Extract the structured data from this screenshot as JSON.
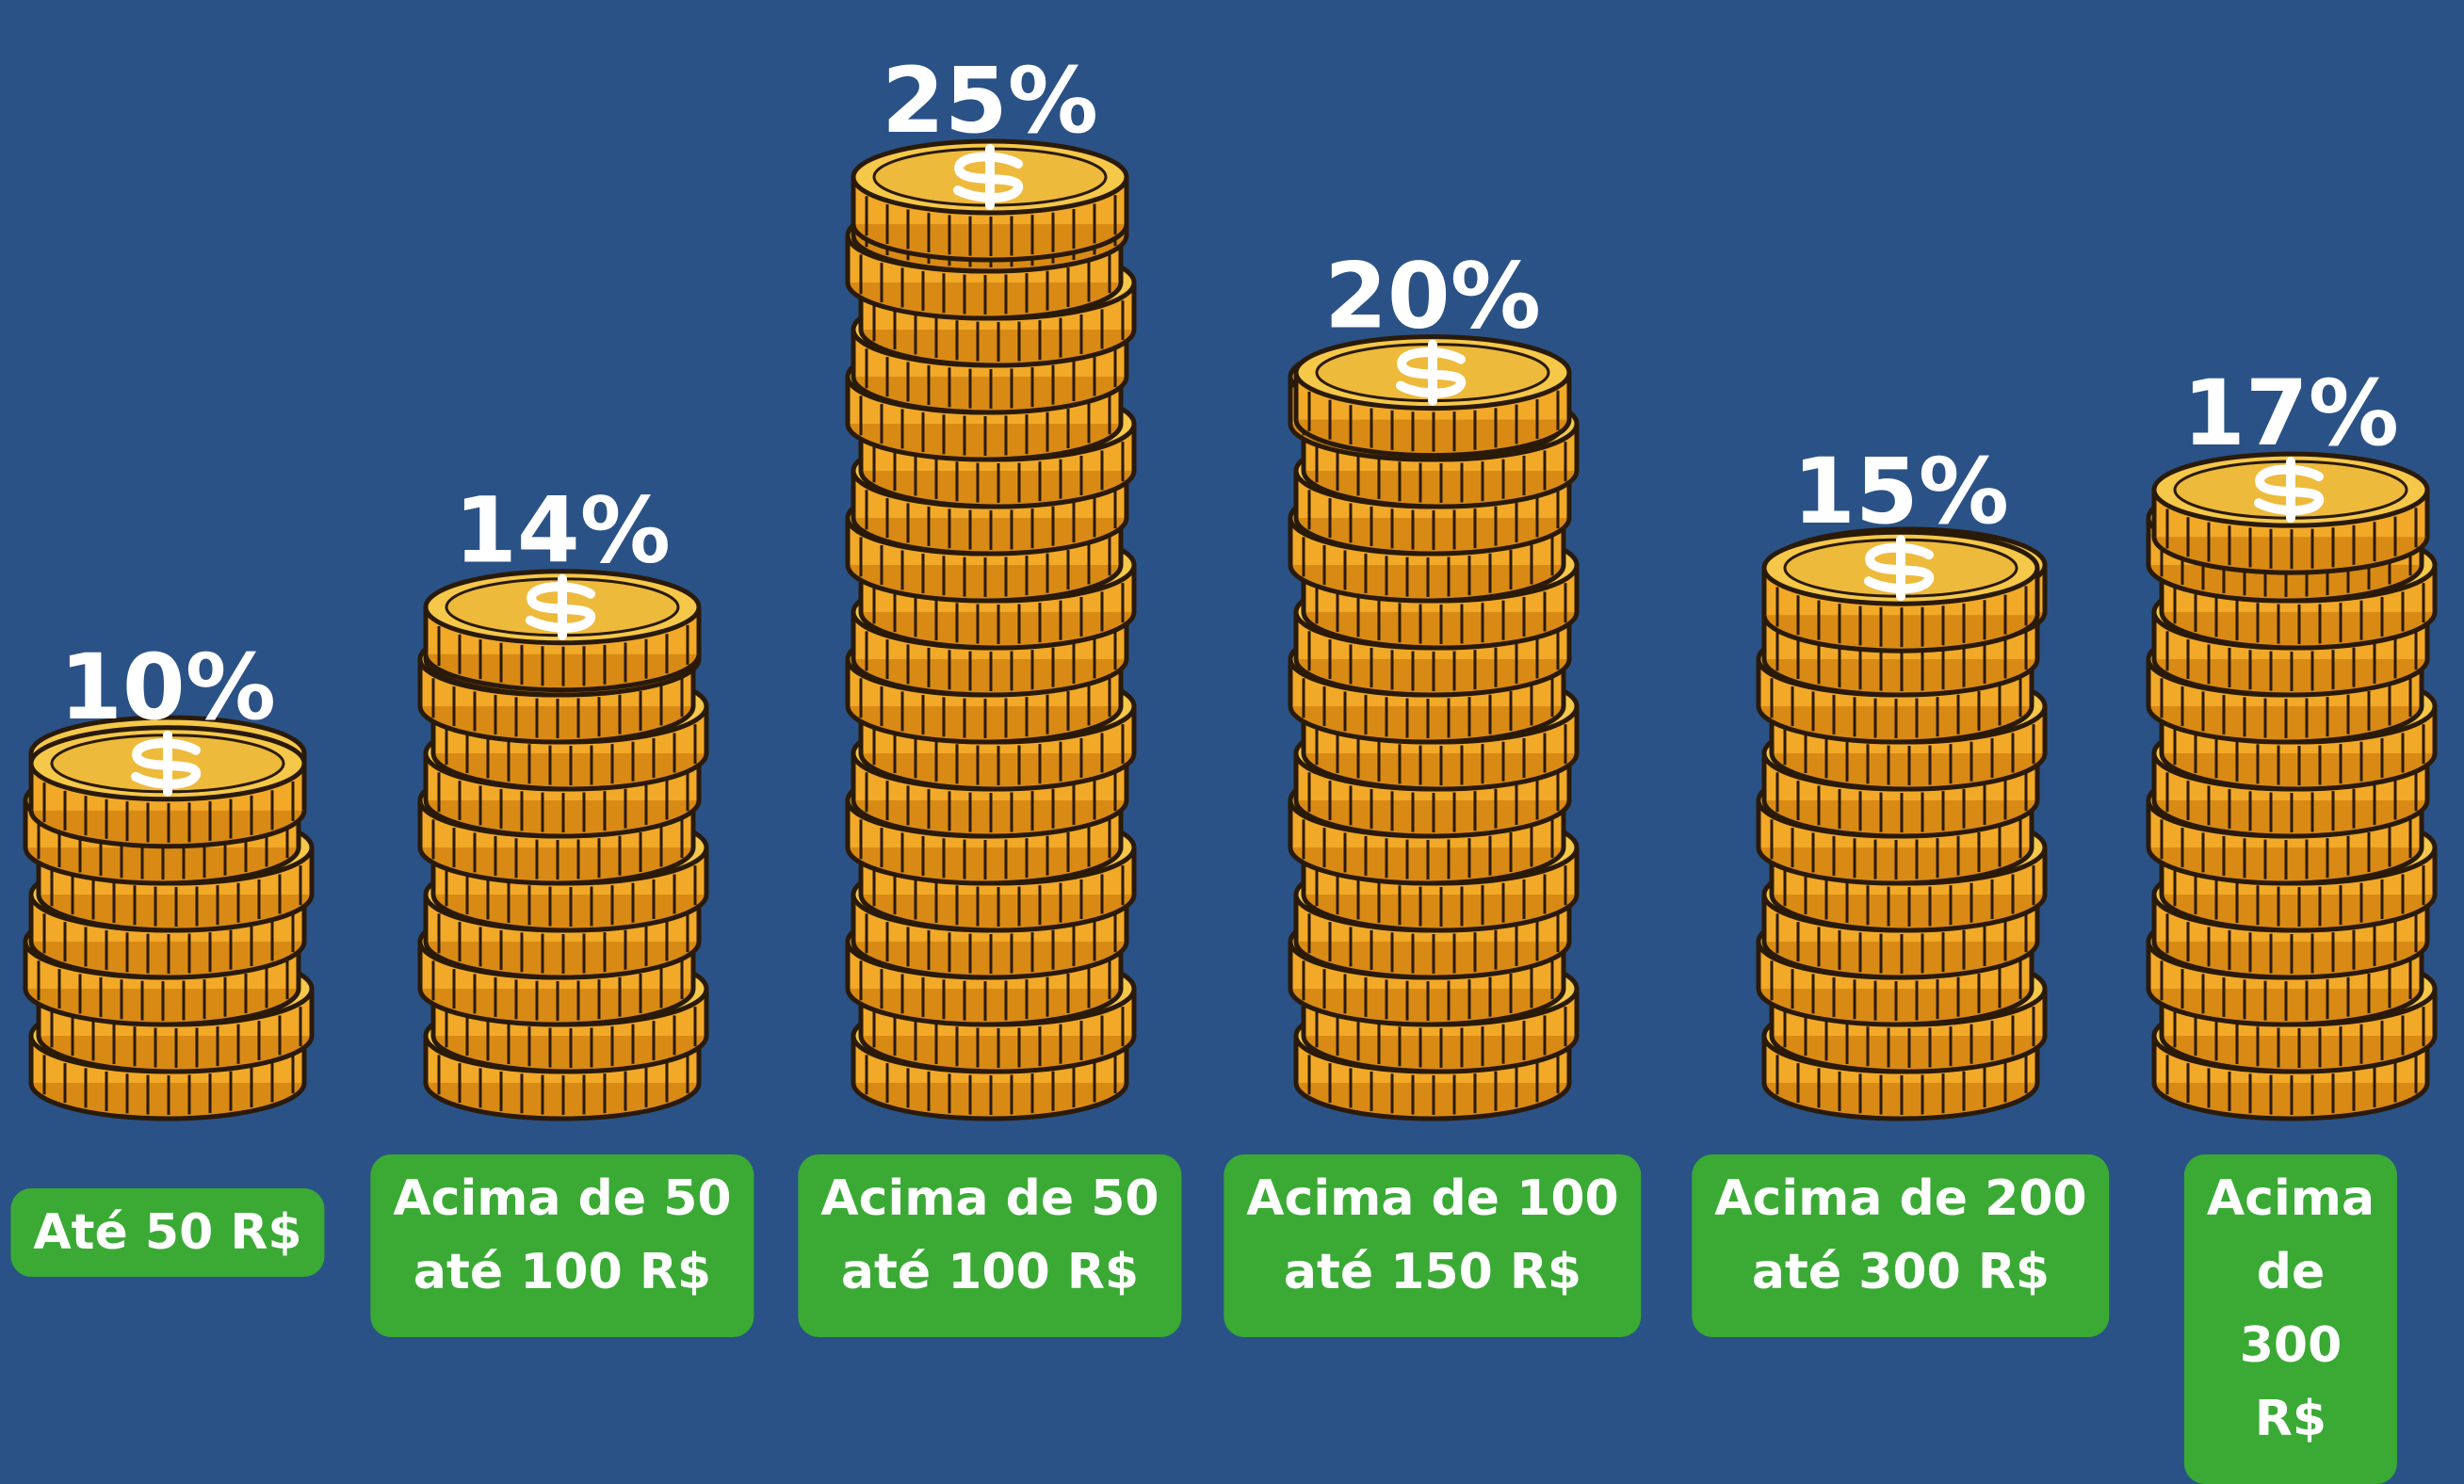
{
  "chart_data": {
    "type": "coin-stack",
    "categories": [
      "Até 50 R$",
      "Acima de 50\naté 100 R$",
      "Acima de 50\naté 100 R$",
      "Acima de 100\naté 150 R$",
      "Acima de 200\naté 300 R$",
      "Acima de\n300 R$"
    ],
    "values": [
      10,
      14,
      25,
      20,
      15,
      17
    ],
    "value_labels": [
      "10%",
      "14%",
      "25%",
      "20%",
      "15%",
      "17%"
    ],
    "color": "#f2a928",
    "ylim": [
      0,
      25
    ]
  }
}
